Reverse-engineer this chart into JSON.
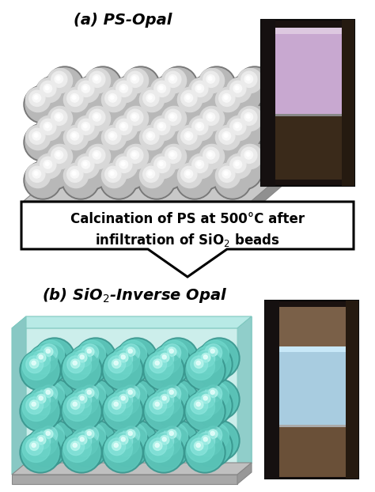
{
  "title_a": "(a) PS-Opal",
  "title_b": "(b) SiO₂-Inverse Opal",
  "arrow_text_line1": "Calcination of PS at 500°C after",
  "arrow_text_line2": "infiltration of SiO₂ beads",
  "bg_color": "#ffffff",
  "arrow_fill": "#ffffff",
  "arrow_edge": "#000000",
  "title_fontsize": 14,
  "arrow_text_fontsize": 12,
  "ps_sphere_base": "#b8b8b8",
  "ps_sphere_dark": "#787878",
  "ps_sphere_light": "#f0f0f0",
  "sio2_sphere_base": "#5ec8bc",
  "sio2_sphere_dark": "#3a9890",
  "sio2_sphere_light": "#c0f0e8",
  "sio2_box_face": "#c8efeb",
  "sio2_box_edge": "#80c8c0",
  "base_plate_top": "#c8c8c8",
  "base_plate_side": "#909090",
  "base_plate_front": "#a0a0a0",
  "photo_a_bg": "#2a2020",
  "photo_a_side": "#1a1510",
  "photo_a_opal": "#c8a8cc",
  "photo_a_bottom": "#4a3828",
  "photo_b_bg": "#2a2020",
  "photo_b_side": "#1a1510",
  "photo_b_top": "#7a6050",
  "photo_b_opal": "#a8cce0",
  "photo_b_bottom": "#6a5040"
}
